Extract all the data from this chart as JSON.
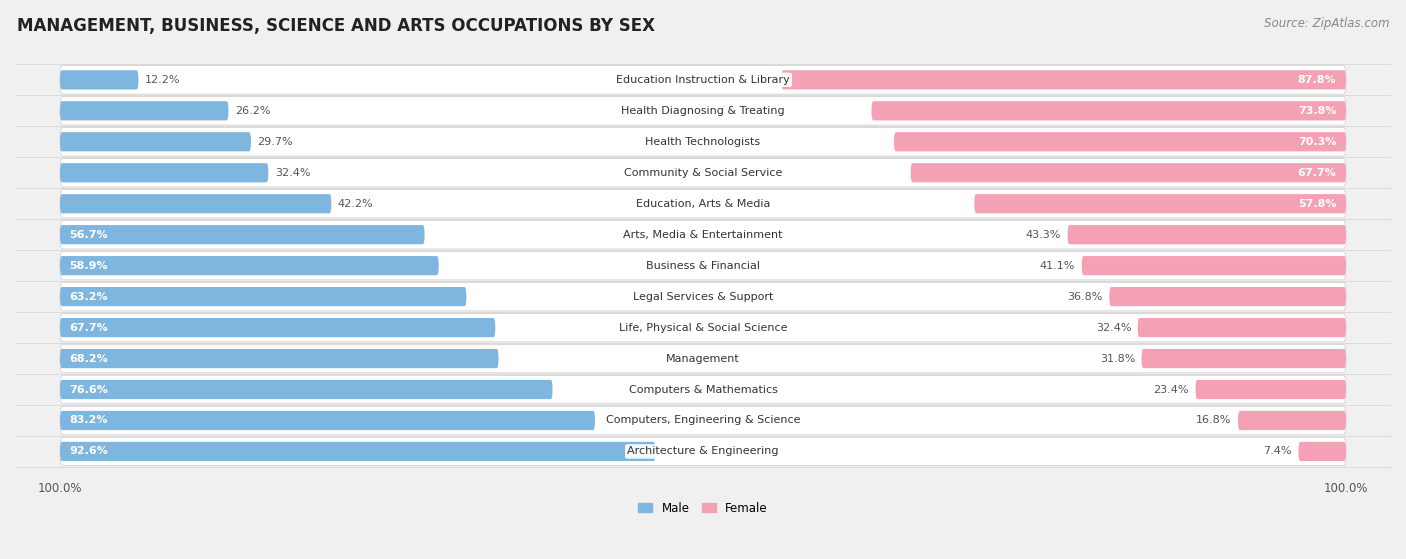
{
  "title": "MANAGEMENT, BUSINESS, SCIENCE AND ARTS OCCUPATIONS BY SEX",
  "source": "Source: ZipAtlas.com",
  "categories": [
    "Architecture & Engineering",
    "Computers, Engineering & Science",
    "Computers & Mathematics",
    "Management",
    "Life, Physical & Social Science",
    "Legal Services & Support",
    "Business & Financial",
    "Arts, Media & Entertainment",
    "Education, Arts & Media",
    "Community & Social Service",
    "Health Technologists",
    "Health Diagnosing & Treating",
    "Education Instruction & Library"
  ],
  "male_pct": [
    92.6,
    83.2,
    76.6,
    68.2,
    67.7,
    63.2,
    58.9,
    56.7,
    42.2,
    32.4,
    29.7,
    26.2,
    12.2
  ],
  "female_pct": [
    7.4,
    16.8,
    23.4,
    31.8,
    32.4,
    36.8,
    41.1,
    43.3,
    57.8,
    67.7,
    70.3,
    73.8,
    87.8
  ],
  "male_color": "#7EB6E0",
  "female_color": "#F4A0B5",
  "bg_color": "#F0F0F0",
  "bar_bg_color": "#FFFFFF",
  "title_fontsize": 12,
  "source_fontsize": 8.5,
  "label_fontsize": 8,
  "cat_fontsize": 8,
  "axis_label_fontsize": 8.5,
  "male_label_inside_threshold": 55,
  "female_label_inside_threshold": 55
}
